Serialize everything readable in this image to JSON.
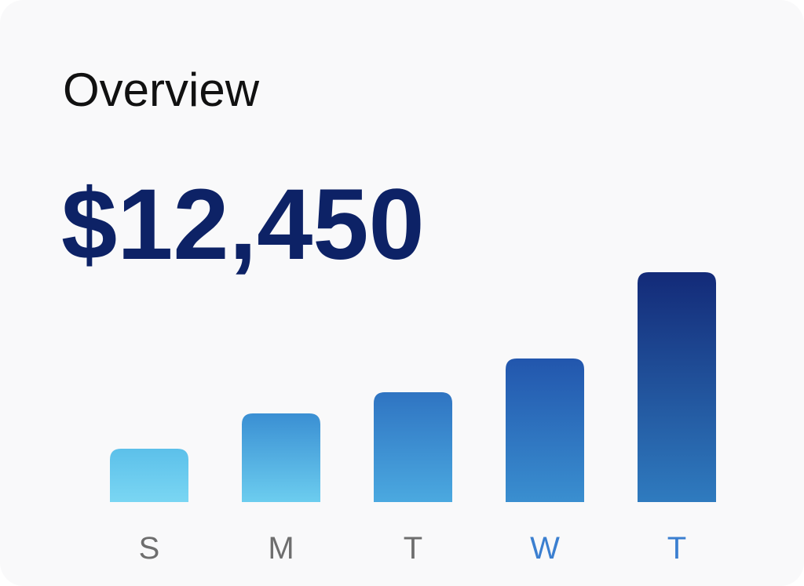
{
  "header": {
    "title": "Overview",
    "total": "$12,450"
  },
  "chart_data": {
    "type": "bar",
    "categories": [
      "S",
      "M",
      "T",
      "W",
      "T"
    ],
    "values": [
      68,
      113,
      140,
      183,
      293
    ],
    "ylim": [
      0,
      300
    ],
    "bar_colors": [
      [
        "#5cc0ea",
        "#7ad6f3"
      ],
      [
        "#3a8fd3",
        "#6ccdef"
      ],
      [
        "#2f74c2",
        "#4ba9e0"
      ],
      [
        "#2256ad",
        "#3a8fd0"
      ],
      [
        "#132a78",
        "#2f7bbf"
      ]
    ],
    "label_colors": [
      "#6e6e6e",
      "#6e6e6e",
      "#6e6e6e",
      "#3b7fd0",
      "#3b7fd0"
    ]
  }
}
